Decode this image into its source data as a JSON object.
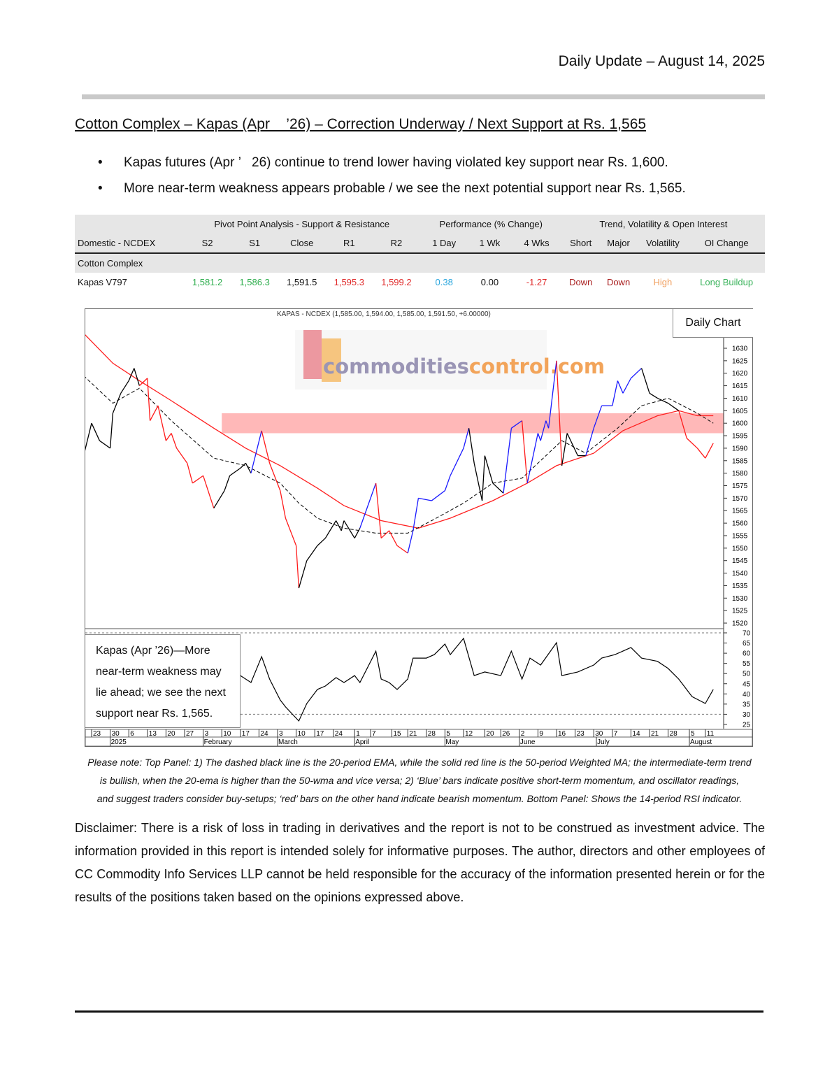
{
  "header": {
    "date_line": "Daily Update – August 14, 2025"
  },
  "title": "Cotton Complex – Kapas (Apr    ’26) – Correction Underway / Next Support at Rs. 1,565",
  "bullets": [
    "Kapas futures (Apr ’   26) continue to trend lower having violated key support near Rs. 1,600.",
    "More near-term weakness appears probable / we see the next potential support near Rs. 1,565."
  ],
  "table": {
    "groups": [
      "Pivot Point Analysis - Support & Resistance",
      "Performance (% Change)",
      "Trend, Volatility & Open Interest"
    ],
    "columns": [
      "Domestic - NCDEX",
      "S2",
      "S1",
      "Close",
      "R1",
      "R2",
      "1 Day",
      "1 Wk",
      "4 Wks",
      "Short",
      "Major",
      "Volatility",
      "OI Change"
    ],
    "section": "Cotton Complex",
    "row": [
      "Kapas V797",
      "1,581.2",
      "1,586.3",
      "1,591.5",
      "1,595.3",
      "1,599.2",
      "0.38",
      "0.00",
      "-1.27",
      "Down",
      "Down",
      "High",
      "Long Buildup"
    ]
  },
  "colors": {
    "support": "#2fae4e",
    "resistance": "#e02a2a",
    "positive": "#2aa6de",
    "down": "#a81c1c",
    "volatility": "#f0a060",
    "oi": "#3bb35c",
    "bullish_bar": "#1a1aff",
    "bearish_bar": "#ff1a1a",
    "neutral_bar": "#000000",
    "wma": "#ff2020",
    "ema": "#000000",
    "zone": "#ffb8b8"
  },
  "chart_data": {
    "type": "line",
    "title": "KAPAS - NCDEX (1,585.00, 1,594.00, 1,585.00, 1,591.50, +6.00000)",
    "label": "Daily Chart",
    "logo": "commoditiescontrol.com",
    "price_axis": {
      "ylim": [
        1515,
        1635
      ],
      "ticks": [
        1520,
        1525,
        1530,
        1535,
        1540,
        1545,
        1550,
        1555,
        1560,
        1565,
        1570,
        1575,
        1580,
        1585,
        1590,
        1595,
        1600,
        1605,
        1610,
        1615,
        1620,
        1625,
        1630
      ]
    },
    "rsi_axis": {
      "ylim": [
        23,
        72
      ],
      "ticks": [
        25,
        30,
        35,
        40,
        45,
        50,
        55,
        60,
        65,
        70
      ],
      "guides": [
        30,
        70
      ]
    },
    "x_ticks": [
      [
        "2024-12-23",
        "23"
      ],
      [
        "2024-12-30",
        "30"
      ],
      [
        "2025-01-06",
        "6"
      ],
      [
        "2025-01-13",
        "13"
      ],
      [
        "2025-01-20",
        "20"
      ],
      [
        "2025-01-27",
        "27"
      ],
      [
        "2025-02-03",
        "3"
      ],
      [
        "2025-02-10",
        "10"
      ],
      [
        "2025-02-17",
        "17"
      ],
      [
        "2025-02-24",
        "24"
      ],
      [
        "2025-03-03",
        "3"
      ],
      [
        "2025-03-10",
        "10"
      ],
      [
        "2025-03-17",
        "17"
      ],
      [
        "2025-03-24",
        "24"
      ],
      [
        "2025-04-01",
        "1"
      ],
      [
        "2025-04-07",
        "7"
      ],
      [
        "2025-04-15",
        "15"
      ],
      [
        "2025-04-21",
        "21"
      ],
      [
        "2025-04-28",
        "28"
      ],
      [
        "2025-05-05",
        "5"
      ],
      [
        "2025-05-12",
        "12"
      ],
      [
        "2025-05-20",
        "20"
      ],
      [
        "2025-05-26",
        "26"
      ],
      [
        "2025-06-02",
        "2"
      ],
      [
        "2025-06-09",
        "9"
      ],
      [
        "2025-06-16",
        "16"
      ],
      [
        "2025-06-23",
        "23"
      ],
      [
        "2025-06-30",
        "30"
      ],
      [
        "2025-07-07",
        "7"
      ],
      [
        "2025-07-14",
        "14"
      ],
      [
        "2025-07-21",
        "21"
      ],
      [
        "2025-07-28",
        "28"
      ],
      [
        "2025-08-05",
        "5"
      ],
      [
        "2025-08-11",
        "11"
      ]
    ],
    "x_months": [
      [
        "2024-12-30",
        "2025"
      ],
      [
        "2025-02-03",
        "February"
      ],
      [
        "2025-03-03",
        "March"
      ],
      [
        "2025-04-01",
        "April"
      ],
      [
        "2025-05-05",
        "May"
      ],
      [
        "2025-06-02",
        "June"
      ],
      [
        "2025-07-01",
        "July"
      ],
      [
        "2025-08-05",
        "August"
      ]
    ],
    "resistance_zone": {
      "from": "2025-02-10",
      "low": 1596,
      "high": 1604
    },
    "price": [
      [
        "2024-12-20",
        1587,
        "n"
      ],
      [
        "2024-12-23",
        1600,
        "n"
      ],
      [
        "2024-12-26",
        1593,
        "n"
      ],
      [
        "2024-12-30",
        1590,
        "n"
      ],
      [
        "2024-12-31",
        1604,
        "n"
      ],
      [
        "2025-01-03",
        1612,
        "n"
      ],
      [
        "2025-01-06",
        1617,
        "n"
      ],
      [
        "2025-01-08",
        1622,
        "n"
      ],
      [
        "2025-01-10",
        1615,
        "n"
      ],
      [
        "2025-01-13",
        1618,
        "r"
      ],
      [
        "2025-01-14",
        1601,
        "r"
      ],
      [
        "2025-01-17",
        1607,
        "r"
      ],
      [
        "2025-01-20",
        1593,
        "r"
      ],
      [
        "2025-01-22",
        1596,
        "r"
      ],
      [
        "2025-01-24",
        1590,
        "r"
      ],
      [
        "2025-01-28",
        1584,
        "r"
      ],
      [
        "2025-01-30",
        1576,
        "r"
      ],
      [
        "2025-02-03",
        1579,
        "r"
      ],
      [
        "2025-02-07",
        1566,
        "r"
      ],
      [
        "2025-02-11",
        1573,
        "n"
      ],
      [
        "2025-02-13",
        1579,
        "n"
      ],
      [
        "2025-02-17",
        1582,
        "n"
      ],
      [
        "2025-02-19",
        1584,
        "n"
      ],
      [
        "2025-02-21",
        1580,
        "n"
      ],
      [
        "2025-02-25",
        1597,
        "b"
      ],
      [
        "2025-02-28",
        1584,
        "r"
      ],
      [
        "2025-03-04",
        1573,
        "r"
      ],
      [
        "2025-03-06",
        1562,
        "r"
      ],
      [
        "2025-03-10",
        1551,
        "r"
      ],
      [
        "2025-03-11",
        1534,
        "r"
      ],
      [
        "2025-03-14",
        1545,
        "n"
      ],
      [
        "2025-03-18",
        1551,
        "n"
      ],
      [
        "2025-03-21",
        1554,
        "n"
      ],
      [
        "2025-03-25",
        1561,
        "n"
      ],
      [
        "2025-03-27",
        1557,
        "n"
      ],
      [
        "2025-03-28",
        1561,
        "n"
      ],
      [
        "2025-04-01",
        1554,
        "n"
      ],
      [
        "2025-04-03",
        1558,
        "n"
      ],
      [
        "2025-04-07",
        1570,
        "b"
      ],
      [
        "2025-04-09",
        1576,
        "b"
      ],
      [
        "2025-04-11",
        1554,
        "r"
      ],
      [
        "2025-04-14",
        1557,
        "r"
      ],
      [
        "2025-04-17",
        1551,
        "r"
      ],
      [
        "2025-04-21",
        1548,
        "r"
      ],
      [
        "2025-04-23",
        1557,
        "b"
      ],
      [
        "2025-04-25",
        1570,
        "b"
      ],
      [
        "2025-04-30",
        1569,
        "b"
      ],
      [
        "2025-05-05",
        1573,
        "b"
      ],
      [
        "2025-05-07",
        1579,
        "b"
      ],
      [
        "2025-05-12",
        1590,
        "b"
      ],
      [
        "2025-05-14",
        1598,
        "b"
      ],
      [
        "2025-05-16",
        1584,
        "n"
      ],
      [
        "2025-05-19",
        1569,
        "n"
      ],
      [
        "2025-05-20",
        1587,
        "n"
      ],
      [
        "2025-05-23",
        1576,
        "n"
      ],
      [
        "2025-05-27",
        1572,
        "n"
      ],
      [
        "2025-05-30",
        1598,
        "b"
      ],
      [
        "2025-06-03",
        1601,
        "b"
      ],
      [
        "2025-06-05",
        1576,
        "r"
      ],
      [
        "2025-06-09",
        1596,
        "b"
      ],
      [
        "2025-06-10",
        1593,
        "b"
      ],
      [
        "2025-06-12",
        1601,
        "b"
      ],
      [
        "2025-06-13",
        1598,
        "b"
      ],
      [
        "2025-06-16",
        1625,
        "b"
      ],
      [
        "2025-06-18",
        1583,
        "r"
      ],
      [
        "2025-06-20",
        1596,
        "n"
      ],
      [
        "2025-06-24",
        1587,
        "n"
      ],
      [
        "2025-06-27",
        1587,
        "n"
      ],
      [
        "2025-06-30",
        1598,
        "b"
      ],
      [
        "2025-07-03",
        1607,
        "b"
      ],
      [
        "2025-07-07",
        1607,
        "b"
      ],
      [
        "2025-07-09",
        1617,
        "b"
      ],
      [
        "2025-07-11",
        1612,
        "b"
      ],
      [
        "2025-07-14",
        1618,
        "b"
      ],
      [
        "2025-07-18",
        1622,
        "b"
      ],
      [
        "2025-07-21",
        1612,
        "n"
      ],
      [
        "2025-07-24",
        1610,
        "n"
      ],
      [
        "2025-07-28",
        1608,
        "n"
      ],
      [
        "2025-08-01",
        1605,
        "n"
      ],
      [
        "2025-08-04",
        1594,
        "r"
      ],
      [
        "2025-08-08",
        1590,
        "r"
      ],
      [
        "2025-08-11",
        1586,
        "r"
      ],
      [
        "2025-08-14",
        1592,
        "r"
      ]
    ],
    "ema20": [
      [
        "2024-12-20",
        1619
      ],
      [
        "2024-12-31",
        1608
      ],
      [
        "2025-01-10",
        1614
      ],
      [
        "2025-01-22",
        1601
      ],
      [
        "2025-02-07",
        1586
      ],
      [
        "2025-02-19",
        1583
      ],
      [
        "2025-03-04",
        1576
      ],
      [
        "2025-03-11",
        1568
      ],
      [
        "2025-03-18",
        1562
      ],
      [
        "2025-03-28",
        1558
      ],
      [
        "2025-04-09",
        1556
      ],
      [
        "2025-04-21",
        1556
      ],
      [
        "2025-04-30",
        1561
      ],
      [
        "2025-05-12",
        1568
      ],
      [
        "2025-05-23",
        1576
      ],
      [
        "2025-06-03",
        1578
      ],
      [
        "2025-06-12",
        1587
      ],
      [
        "2025-06-18",
        1593
      ],
      [
        "2025-06-27",
        1588
      ],
      [
        "2025-07-09",
        1598
      ],
      [
        "2025-07-18",
        1607
      ],
      [
        "2025-07-28",
        1610
      ],
      [
        "2025-08-08",
        1604
      ],
      [
        "2025-08-14",
        1600
      ]
    ],
    "wma50": [
      [
        "2024-12-20",
        1636
      ],
      [
        "2024-12-31",
        1624
      ],
      [
        "2025-01-10",
        1617
      ],
      [
        "2025-01-22",
        1609
      ],
      [
        "2025-02-07",
        1598
      ],
      [
        "2025-02-19",
        1590
      ],
      [
        "2025-03-04",
        1583
      ],
      [
        "2025-03-18",
        1574
      ],
      [
        "2025-03-28",
        1567
      ],
      [
        "2025-04-11",
        1561
      ],
      [
        "2025-04-25",
        1558
      ],
      [
        "2025-05-07",
        1562
      ],
      [
        "2025-05-23",
        1569
      ],
      [
        "2025-06-05",
        1576
      ],
      [
        "2025-06-16",
        1583
      ],
      [
        "2025-06-30",
        1588
      ],
      [
        "2025-07-11",
        1597
      ],
      [
        "2025-07-24",
        1603
      ],
      [
        "2025-08-01",
        1605
      ],
      [
        "2025-08-08",
        1603
      ],
      [
        "2025-08-14",
        1603
      ]
    ],
    "rsi14": [
      [
        "2025-02-17",
        49
      ],
      [
        "2025-02-21",
        45.6
      ],
      [
        "2025-02-25",
        58.3
      ],
      [
        "2025-02-28",
        47.3
      ],
      [
        "2025-03-04",
        37
      ],
      [
        "2025-03-06",
        33.6
      ],
      [
        "2025-03-11",
        26.7
      ],
      [
        "2025-03-14",
        35.3
      ],
      [
        "2025-03-18",
        42.2
      ],
      [
        "2025-03-21",
        43.9
      ],
      [
        "2025-03-25",
        48
      ],
      [
        "2025-03-28",
        45.6
      ],
      [
        "2025-04-01",
        49
      ],
      [
        "2025-04-03",
        45.6
      ],
      [
        "2025-04-09",
        61
      ],
      [
        "2025-04-11",
        47.3
      ],
      [
        "2025-04-14",
        45.6
      ],
      [
        "2025-04-17",
        42.2
      ],
      [
        "2025-04-21",
        47.3
      ],
      [
        "2025-04-23",
        57.6
      ],
      [
        "2025-04-28",
        57.6
      ],
      [
        "2025-05-01",
        59.3
      ],
      [
        "2025-05-05",
        64.5
      ],
      [
        "2025-05-07",
        59.3
      ],
      [
        "2025-05-12",
        67.3
      ],
      [
        "2025-05-16",
        49
      ],
      [
        "2025-05-20",
        50.8
      ],
      [
        "2025-05-26",
        49
      ],
      [
        "2025-05-30",
        61
      ],
      [
        "2025-06-03",
        47.3
      ],
      [
        "2025-06-06",
        57.6
      ],
      [
        "2025-06-10",
        54.2
      ],
      [
        "2025-06-16",
        65.2
      ],
      [
        "2025-06-18",
        49
      ],
      [
        "2025-06-24",
        50.8
      ],
      [
        "2025-06-30",
        54.2
      ],
      [
        "2025-07-03",
        57.6
      ],
      [
        "2025-07-08",
        59.3
      ],
      [
        "2025-07-14",
        62.8
      ],
      [
        "2025-07-18",
        57.6
      ],
      [
        "2025-07-24",
        56
      ],
      [
        "2025-07-28",
        52.5
      ],
      [
        "2025-08-01",
        47.3
      ],
      [
        "2025-08-06",
        38.7
      ],
      [
        "2025-08-11",
        35.3
      ],
      [
        "2025-08-14",
        42.2
      ]
    ],
    "annotation": "Kapas (Apr    ’26)—More near-term weakness may lie ahead; we see the next support near Rs. 1,565."
  },
  "note": "Please note: Top Panel: 1) The dashed black line is the 20-period EMA, while the solid red line is the 50-period Weighted MA; the intermediate-term trend\nis bullish, when the 20-ema is higher than the 50-wma and vice versa; 2)   ‘Blue’   bars indicate positive short-term momentum, and oscillator readings,\nand suggest traders consider buy-setups;   ‘red’   bars on the other hand indicate bearish momentum. Bottom Panel: Shows the 14-period RSI indicator.",
  "disclaimer": "Disclaimer: There is a risk of loss in trading in derivatives and the report is not to be construed as investment advice. The information provided in this report is intended solely for informative purposes. The author, directors and other employees of CC Commodity Info Services LLP cannot be held responsible for the accuracy of the information presented herein or for the results of the positions taken based on the opinions expressed above."
}
